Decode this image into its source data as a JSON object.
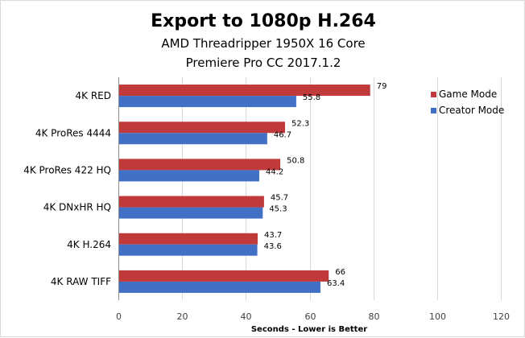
{
  "chart_data": {
    "type": "bar",
    "orientation": "horizontal",
    "title": "Export to 1080p H.264",
    "subtitle_lines": [
      "AMD Threadripper 1950X 16 Core",
      "Premiere Pro CC 2017.1.2"
    ],
    "categories": [
      "4K RED",
      "4K ProRes 4444",
      "4K ProRes 422 HQ",
      "4K DNxHR HQ",
      "4K H.264",
      "4K RAW TIFF"
    ],
    "series": [
      {
        "name": "Game Mode",
        "color": "#c0393b",
        "values": [
          79,
          52.3,
          50.8,
          45.7,
          43.7,
          66
        ],
        "labels": [
          "79",
          "52.3",
          "50.8",
          "45.7",
          "43.7",
          "66"
        ]
      },
      {
        "name": "Creator Mode",
        "color": "#4170c4",
        "values": [
          55.8,
          46.7,
          44.2,
          45.3,
          43.6,
          63.4
        ],
        "labels": [
          "55.8",
          "46.7",
          "44.2",
          "45.3",
          "43.6",
          "63.4"
        ]
      }
    ],
    "xlabel": "Seconds - Lower is Better",
    "xlim": [
      0,
      120
    ],
    "xticks": [
      0,
      20,
      40,
      60,
      80,
      100,
      120
    ],
    "grid": true,
    "legend_position": "top-right"
  }
}
